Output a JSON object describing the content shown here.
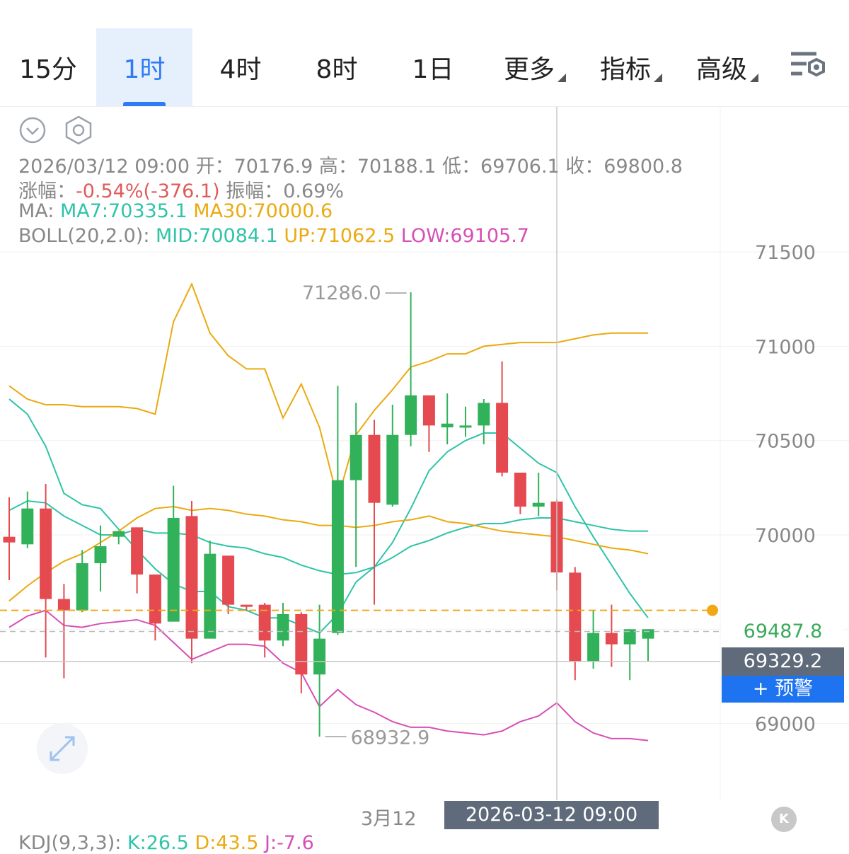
{
  "tabs": [
    {
      "label": "15分",
      "active": false,
      "dropdown": false
    },
    {
      "label": "1时",
      "active": true,
      "dropdown": false
    },
    {
      "label": "4时",
      "active": false,
      "dropdown": false
    },
    {
      "label": "8时",
      "active": false,
      "dropdown": false
    },
    {
      "label": "1日",
      "active": false,
      "dropdown": false
    },
    {
      "label": "更多",
      "active": false,
      "dropdown": true
    },
    {
      "label": "指标",
      "active": false,
      "dropdown": true
    },
    {
      "label": "高级",
      "active": false,
      "dropdown": true
    }
  ],
  "icons": {
    "settings": "chart-settings-icon",
    "collapse": "chevron-down-circle-icon",
    "hexagon": "hexagon-settings-icon",
    "expand": "expand-arrows-icon"
  },
  "info": {
    "ohlc_line": [
      {
        "text": "2026/03/12 09:00 开：70176.9 高：70188.1 低：69706.1 收：69800.8",
        "color": "grey"
      }
    ],
    "change_line": [
      {
        "text": "涨幅：",
        "color": "grey"
      },
      {
        "text": "-0.54%(-376.1)",
        "color": "red"
      },
      {
        "text": " 振幅：0.69%",
        "color": "grey"
      }
    ],
    "ma_line": [
      {
        "text": "MA: ",
        "color": "grey"
      },
      {
        "text": "MA7:70335.1 ",
        "color": "teal"
      },
      {
        "text": "MA30:70000.6",
        "color": "gold"
      }
    ],
    "boll_line": [
      {
        "text": "BOLL(20,2.0): ",
        "color": "grey"
      },
      {
        "text": "MID:70084.1 ",
        "color": "teal"
      },
      {
        "text": "UP:71062.5 ",
        "color": "gold"
      },
      {
        "text": "LOW:69105.7",
        "color": "mag"
      }
    ]
  },
  "colors": {
    "up": "#31b25a",
    "down": "#e44a4f",
    "ma7": "#2fc4a8",
    "ma30": "#eaaa10",
    "boll_mid": "#2fc4a8",
    "boll_up": "#eaaa10",
    "boll_low": "#d64fb5",
    "accent": "#2f7bf5"
  },
  "price_tags": {
    "last": "69487.8",
    "crosshair": "69329.2",
    "alert": "+ 预警"
  },
  "bottom": {
    "date_label": "3月12",
    "crosshair_time": "2026-03-12 09:00",
    "k_button": "K",
    "kdj": [
      {
        "text": "KDJ(9,3,3): ",
        "color": "grey"
      },
      {
        "text": "K:26.5 ",
        "color": "teal"
      },
      {
        "text": "D:43.5 ",
        "color": "gold"
      },
      {
        "text": "J:-7.6",
        "color": "mag"
      }
    ]
  },
  "chart_data": {
    "type": "candlestick",
    "y_ticks": [
      71500,
      71000,
      70500,
      70000,
      69000
    ],
    "ylim": [
      68550,
      72300
    ],
    "max_label": "71286.0",
    "min_label": "68932.9",
    "last_price": 69487.8,
    "alert_price": 69600,
    "crosshair_price": 69329.2,
    "candles": [
      {
        "o": 69990,
        "h": 70200,
        "l": 69760,
        "c": 69960
      },
      {
        "o": 69950,
        "h": 70230,
        "l": 69930,
        "c": 70140
      },
      {
        "o": 70140,
        "h": 70270,
        "l": 69350,
        "c": 69660
      },
      {
        "o": 69660,
        "h": 69740,
        "l": 69240,
        "c": 69600
      },
      {
        "o": 69600,
        "h": 69920,
        "l": 69590,
        "c": 69850
      },
      {
        "o": 69850,
        "h": 70050,
        "l": 69700,
        "c": 69940
      },
      {
        "o": 69990,
        "h": 70010,
        "l": 69950,
        "c": 70020
      },
      {
        "o": 70040,
        "h": 70040,
        "l": 69690,
        "c": 69790
      },
      {
        "o": 69790,
        "h": 69790,
        "l": 69440,
        "c": 69530
      },
      {
        "o": 69540,
        "h": 70260,
        "l": 69540,
        "c": 70090
      },
      {
        "o": 70100,
        "h": 70180,
        "l": 69320,
        "c": 69450
      },
      {
        "o": 69450,
        "h": 69970,
        "l": 69460,
        "c": 69900
      },
      {
        "o": 69890,
        "h": 69890,
        "l": 69580,
        "c": 69630
      },
      {
        "o": 69630,
        "h": 69620,
        "l": 69600,
        "c": 69620
      },
      {
        "o": 69630,
        "h": 69640,
        "l": 69350,
        "c": 69440
      },
      {
        "o": 69440,
        "h": 69640,
        "l": 69410,
        "c": 69580
      },
      {
        "o": 69580,
        "h": 69590,
        "l": 69160,
        "c": 69260
      },
      {
        "o": 69260,
        "h": 69630,
        "l": 68930,
        "c": 69450
      },
      {
        "o": 69480,
        "h": 70790,
        "l": 69470,
        "c": 70290
      },
      {
        "o": 70290,
        "h": 70700,
        "l": 69830,
        "c": 70530
      },
      {
        "o": 70530,
        "h": 70610,
        "l": 69630,
        "c": 70170
      },
      {
        "o": 70160,
        "h": 70690,
        "l": 70150,
        "c": 70530
      },
      {
        "o": 70530,
        "h": 71286,
        "l": 70470,
        "c": 70740
      },
      {
        "o": 70740,
        "h": 70720,
        "l": 70440,
        "c": 70580
      },
      {
        "o": 70570,
        "h": 70750,
        "l": 70480,
        "c": 70590
      },
      {
        "o": 70580,
        "h": 70680,
        "l": 70520,
        "c": 70580
      },
      {
        "o": 70580,
        "h": 70720,
        "l": 70480,
        "c": 70700
      },
      {
        "o": 70700,
        "h": 70920,
        "l": 70310,
        "c": 70330
      },
      {
        "o": 70330,
        "h": 70330,
        "l": 70110,
        "c": 70150
      },
      {
        "o": 70150,
        "h": 70330,
        "l": 70100,
        "c": 70170
      },
      {
        "o": 70176.9,
        "h": 70188.1,
        "l": 69706.1,
        "c": 69800.8
      },
      {
        "o": 69800,
        "h": 69830,
        "l": 69230,
        "c": 69330
      },
      {
        "o": 69330,
        "h": 69600,
        "l": 69290,
        "c": 69480
      },
      {
        "o": 69480,
        "h": 69630,
        "l": 69300,
        "c": 69420
      },
      {
        "o": 69420,
        "h": 69500,
        "l": 69230,
        "c": 69500
      },
      {
        "o": 69450,
        "h": 69500,
        "l": 69330,
        "c": 69500
      }
    ],
    "boll_up": [
      70790,
      70720,
      70690,
      70690,
      70680,
      70680,
      70680,
      70670,
      70640,
      71130,
      71330,
      71070,
      70950,
      70880,
      70880,
      70620,
      70800,
      70570,
      70190,
      70530,
      70660,
      70770,
      70890,
      70920,
      70960,
      70960,
      71000,
      71010,
      71020,
      71020,
      71020,
      71040,
      71060,
      71070,
      71070,
      71070
    ],
    "boll_mid": [
      70130,
      70180,
      70170,
      70100,
      70050,
      70000,
      70000,
      70030,
      70010,
      70010,
      70000,
      69960,
      69940,
      69930,
      69900,
      69880,
      69840,
      69810,
      69790,
      69800,
      69830,
      69880,
      69940,
      69970,
      70010,
      70040,
      70060,
      70060,
      70080,
      70090,
      70090,
      70070,
      70050,
      70030,
      70020,
      70020
    ],
    "boll_low": [
      69510,
      69570,
      69600,
      69520,
      69510,
      69530,
      69540,
      69550,
      69520,
      69430,
      69340,
      69380,
      69420,
      69420,
      69410,
      69320,
      69270,
      69090,
      69180,
      69100,
      69060,
      69010,
      68980,
      68980,
      68960,
      68950,
      68940,
      68960,
      69010,
      69040,
      69110,
      69010,
      68950,
      68920,
      68920,
      68910
    ],
    "ma7": [
      70720,
      70640,
      70470,
      70220,
      70160,
      70140,
      70030,
      69920,
      69820,
      69740,
      69700,
      69700,
      69620,
      69600,
      69560,
      69560,
      69520,
      69480,
      69580,
      69750,
      69830,
      69960,
      70140,
      70340,
      70440,
      70500,
      70540,
      70540,
      70460,
      70380,
      70330,
      70150,
      69990,
      69840,
      69690,
      69560
    ],
    "ma30": [
      69650,
      69730,
      69800,
      69860,
      69900,
      69960,
      70020,
      70090,
      70140,
      70150,
      70130,
      70140,
      70130,
      70110,
      70100,
      70080,
      70070,
      70050,
      70050,
      70040,
      70050,
      70070,
      70080,
      70100,
      70070,
      70060,
      70040,
      70020,
      70010,
      70000,
      69990,
      69970,
      69950,
      69930,
      69920,
      69900
    ]
  }
}
